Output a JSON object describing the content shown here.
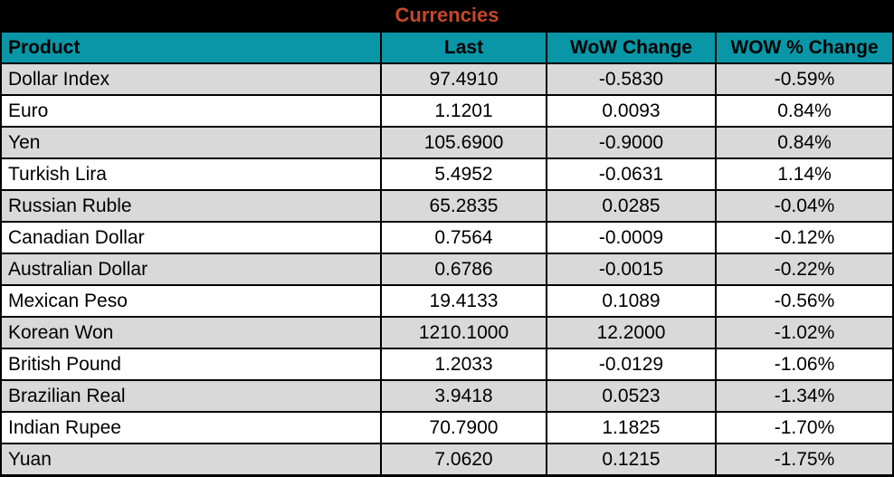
{
  "title": "Currencies",
  "colors": {
    "title_bar_bg": "#000000",
    "title_text": "#c4482b",
    "header_bg": "#0996a6",
    "header_text": "#000000",
    "row_bg": "#ffffff",
    "row_alt_bg": "#d9d9d9",
    "border": "#000000"
  },
  "table": {
    "columns": [
      {
        "label": "Product",
        "align": "left"
      },
      {
        "label": "Last",
        "align": "center"
      },
      {
        "label": "WoW Change",
        "align": "center"
      },
      {
        "label": "WOW % Change",
        "align": "center"
      }
    ],
    "rows": [
      {
        "product": "Dollar Index",
        "last": "97.4910",
        "wow_change": "-0.5830",
        "wow_pct_change": "-0.59%"
      },
      {
        "product": "Euro",
        "last": "1.1201",
        "wow_change": "0.0093",
        "wow_pct_change": "0.84%"
      },
      {
        "product": "Yen",
        "last": "105.6900",
        "wow_change": "-0.9000",
        "wow_pct_change": "0.84%"
      },
      {
        "product": "Turkish Lira",
        "last": "5.4952",
        "wow_change": "-0.0631",
        "wow_pct_change": "1.14%"
      },
      {
        "product": "Russian Ruble",
        "last": "65.2835",
        "wow_change": "0.0285",
        "wow_pct_change": "-0.04%"
      },
      {
        "product": "Canadian Dollar",
        "last": "0.7564",
        "wow_change": "-0.0009",
        "wow_pct_change": "-0.12%"
      },
      {
        "product": "Australian Dollar",
        "last": "0.6786",
        "wow_change": "-0.0015",
        "wow_pct_change": "-0.22%"
      },
      {
        "product": "Mexican Peso",
        "last": "19.4133",
        "wow_change": "0.1089",
        "wow_pct_change": "-0.56%"
      },
      {
        "product": "Korean Won",
        "last": "1210.1000",
        "wow_change": "12.2000",
        "wow_pct_change": "-1.02%"
      },
      {
        "product": "British Pound",
        "last": "1.2033",
        "wow_change": "-0.0129",
        "wow_pct_change": "-1.06%"
      },
      {
        "product": "Brazilian Real",
        "last": "3.9418",
        "wow_change": "0.0523",
        "wow_pct_change": "-1.34%"
      },
      {
        "product": "Indian Rupee",
        "last": "70.7900",
        "wow_change": "1.1825",
        "wow_pct_change": "-1.70%"
      },
      {
        "product": "Yuan",
        "last": "7.0620",
        "wow_change": "0.1215",
        "wow_pct_change": "-1.75%"
      }
    ]
  }
}
